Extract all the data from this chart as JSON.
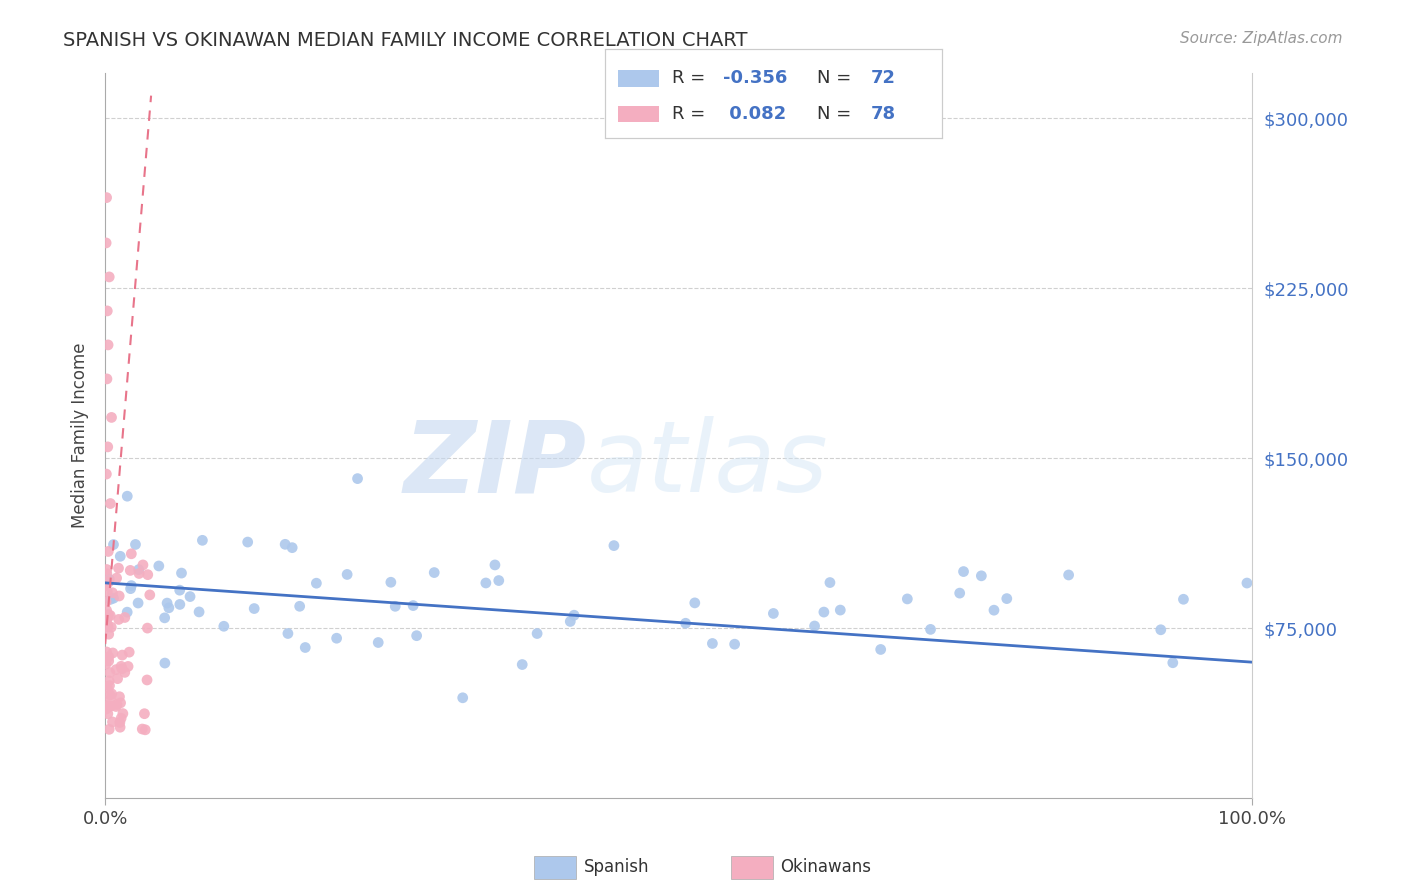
{
  "title": "SPANISH VS OKINAWAN MEDIAN FAMILY INCOME CORRELATION CHART",
  "source_text": "Source: ZipAtlas.com",
  "ylabel": "Median Family Income",
  "xlim": [
    0.0,
    100.0
  ],
  "ylim": [
    0,
    320000
  ],
  "yticks": [
    75000,
    150000,
    225000,
    300000
  ],
  "ytick_labels": [
    "$75,000",
    "$150,000",
    "$225,000",
    "$300,000"
  ],
  "xtick_labels": [
    "0.0%",
    "100.0%"
  ],
  "watermark_zip": "ZIP",
  "watermark_atlas": "atlas",
  "legend_R_spanish": "-0.356",
  "legend_N_spanish": "72",
  "legend_R_okinawan": "0.082",
  "legend_N_okinawan": "78",
  "spanish_color": "#adc8ec",
  "okinawan_color": "#f4aec0",
  "spanish_line_color": "#4472c4",
  "okinawan_line_color": "#e8748a",
  "background_color": "#ffffff",
  "grid_color": "#d0d0d0",
  "title_color": "#333333",
  "source_color": "#999999",
  "ytick_color": "#4472c4",
  "legend_text_color": "#333333",
  "legend_num_color": "#4472c4"
}
